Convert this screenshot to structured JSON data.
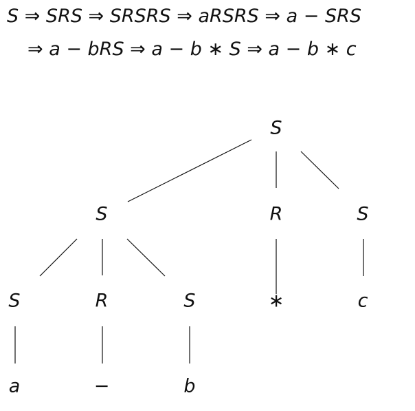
{
  "derivation": {
    "line1": "S ⇒ SRS ⇒ SRSRS ⇒ aRSRS ⇒ a − SRS",
    "line2": "⇒ a − bRS ⇒ a − b ∗ S ⇒ a − b ∗ c"
  },
  "tree": {
    "nodes": [
      {
        "id": "root",
        "label": "S",
        "style": "italic"
      },
      {
        "id": "left-s",
        "label": "S",
        "style": "italic"
      },
      {
        "id": "mid-r",
        "label": "R",
        "style": "italic"
      },
      {
        "id": "right-s",
        "label": "S",
        "style": "italic"
      },
      {
        "id": "ll-s",
        "label": "S",
        "style": "italic"
      },
      {
        "id": "lm-r",
        "label": "R",
        "style": "italic"
      },
      {
        "id": "lr-s",
        "label": "S",
        "style": "italic"
      },
      {
        "id": "leaf-star",
        "label": "∗",
        "style": "upright"
      },
      {
        "id": "leaf-c",
        "label": "c",
        "style": "italic"
      },
      {
        "id": "leaf-a",
        "label": "a",
        "style": "italic"
      },
      {
        "id": "leaf-minus",
        "label": "−",
        "style": "upright"
      },
      {
        "id": "leaf-b",
        "label": "b",
        "style": "italic"
      }
    ],
    "edges": [
      {
        "from": "root",
        "to": "left-s"
      },
      {
        "from": "root",
        "to": "mid-r"
      },
      {
        "from": "root",
        "to": "right-s"
      },
      {
        "from": "left-s",
        "to": "ll-s"
      },
      {
        "from": "left-s",
        "to": "lm-r"
      },
      {
        "from": "left-s",
        "to": "lr-s"
      },
      {
        "from": "mid-r",
        "to": "leaf-star"
      },
      {
        "from": "right-s",
        "to": "leaf-c"
      },
      {
        "from": "ll-s",
        "to": "leaf-a"
      },
      {
        "from": "lm-r",
        "to": "leaf-minus"
      },
      {
        "from": "lr-s",
        "to": "leaf-b"
      }
    ]
  }
}
